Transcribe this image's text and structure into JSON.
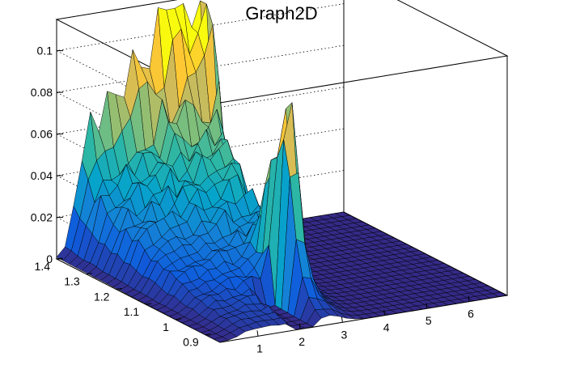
{
  "chart_data": {
    "type": "surface",
    "title": "Graph2D",
    "xlabel": "",
    "ylabel": "",
    "zlabel": "",
    "x_ticks": [
      "1",
      "2",
      "3",
      "4",
      "5",
      "6"
    ],
    "y_ticks": [
      "0.9",
      "1",
      "1.1",
      "1.2",
      "1.3",
      "1.4"
    ],
    "z_ticks": [
      "0",
      "0.02",
      "0.04",
      "0.06",
      "0.08",
      "0.1"
    ],
    "x_range": [
      0.1,
      6.9
    ],
    "y_range": [
      0.85,
      1.4
    ],
    "z_range": [
      0,
      0.115
    ],
    "grid": true,
    "palette": [
      "#352a87",
      "#0f5cdd",
      "#1481d6",
      "#06a4ca",
      "#2eb7a4",
      "#87bf77",
      "#d1bb59",
      "#fec832",
      "#f9fb0e"
    ],
    "ridge_peak_samples": [
      {
        "x": 1.0,
        "y": 1.38,
        "z": 0.04
      },
      {
        "x": 1.5,
        "y": 1.38,
        "z": 0.052
      },
      {
        "x": 2.0,
        "y": 1.38,
        "z": 0.062
      },
      {
        "x": 2.5,
        "y": 1.38,
        "z": 0.075
      },
      {
        "x": 3.0,
        "y": 1.38,
        "z": 0.088
      },
      {
        "x": 3.4,
        "y": 1.38,
        "z": 0.104
      },
      {
        "x": 2.5,
        "y": 1.1,
        "z": 0.078
      },
      {
        "x": 2.6,
        "y": 1.0,
        "z": 0.09
      }
    ]
  }
}
